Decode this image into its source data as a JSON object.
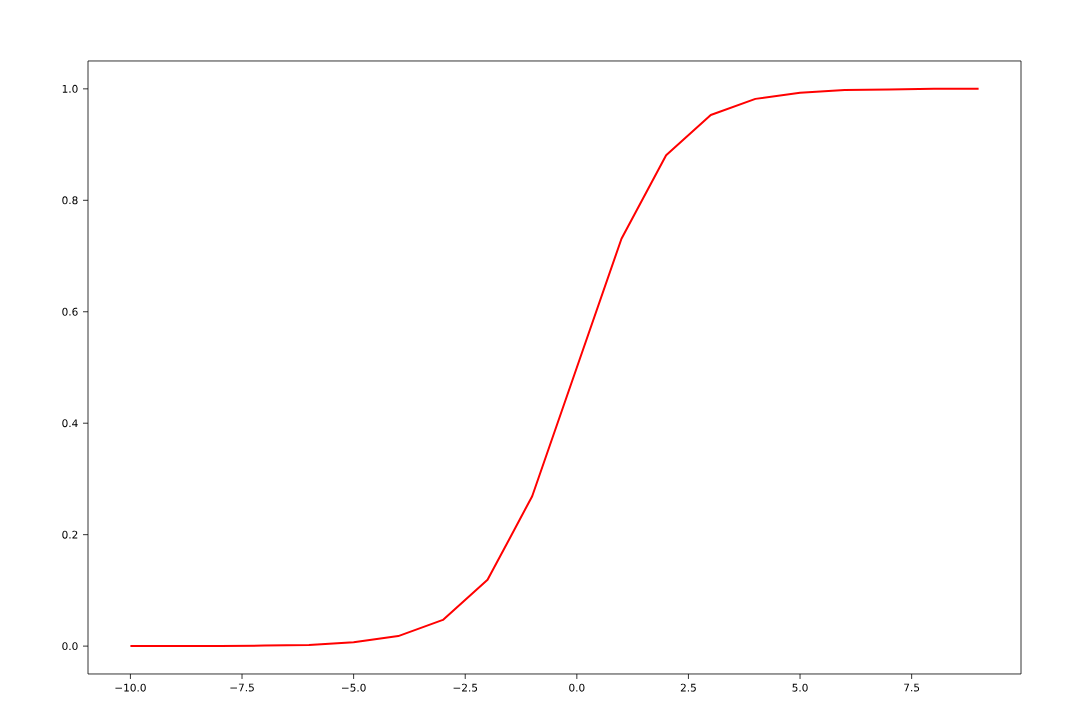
{
  "chart_data": {
    "type": "line",
    "x": [
      -10,
      -9,
      -8,
      -7,
      -6,
      -5,
      -4,
      -3,
      -2,
      -1,
      0,
      1,
      2,
      3,
      4,
      5,
      6,
      7,
      8,
      9
    ],
    "series": [
      {
        "color": "#ff0000",
        "values": [
          0.0,
          0.0,
          0.0,
          0.001,
          0.002,
          0.007,
          0.018,
          0.047,
          0.119,
          0.269,
          0.5,
          0.731,
          0.881,
          0.953,
          0.982,
          0.993,
          0.998,
          0.999,
          1.0,
          1.0
        ]
      }
    ],
    "xlim": [
      -10.95,
      9.95
    ],
    "ylim": [
      -0.05,
      1.05
    ],
    "xticks": [
      {
        "value": -10,
        "label": "−10.0"
      },
      {
        "value": -7.5,
        "label": "−7.5"
      },
      {
        "value": -5,
        "label": "−5.0"
      },
      {
        "value": -2.5,
        "label": "−2.5"
      },
      {
        "value": 0,
        "label": "0.0"
      },
      {
        "value": 2.5,
        "label": "2.5"
      },
      {
        "value": 5,
        "label": "5.0"
      },
      {
        "value": 7.5,
        "label": "7.5"
      }
    ],
    "yticks": [
      {
        "value": 0,
        "label": "0.0"
      },
      {
        "value": 0.2,
        "label": "0.2"
      },
      {
        "value": 0.4,
        "label": "0.4"
      },
      {
        "value": 0.6,
        "label": "0.6"
      },
      {
        "value": 0.8,
        "label": "0.8"
      },
      {
        "value": 1.0,
        "label": "1.0"
      }
    ],
    "grid": false,
    "marker": "none",
    "line_style": "solid"
  }
}
